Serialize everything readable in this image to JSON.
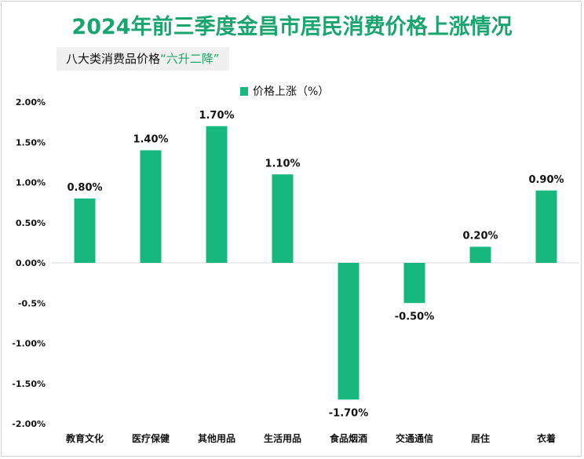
{
  "header": {
    "title": "2024年前三季度金昌市居民消费价格上涨情况",
    "subtitle_prefix": "八大类消费品价格",
    "subtitle_highlight": "“六升二降”"
  },
  "colors": {
    "bar": "#16b87d",
    "title": "#1aa56e",
    "highlight": "#16a766"
  },
  "chart_data": {
    "type": "bar",
    "title": "2024年前三季度金昌市居民消费价格上涨情况",
    "categories": [
      "教育文化",
      "医疗保健",
      "其他用品",
      "生活用品",
      "食品烟酒",
      "交通通信",
      "居住",
      "衣着"
    ],
    "series": [
      {
        "name": "价格上涨（%）",
        "values": [
          0.8,
          1.4,
          1.7,
          1.1,
          -1.7,
          -0.5,
          0.2,
          0.9
        ]
      }
    ],
    "data_labels": [
      "0.80%",
      "1.40%",
      "1.70%",
      "1.10%",
      "-1.70%",
      "-0.50%",
      "0.20%",
      "0.90%"
    ],
    "yticks": [
      2.0,
      1.5,
      1.0,
      0.5,
      0.0,
      -0.5,
      -1.0,
      -1.5,
      -2.0
    ],
    "ytick_labels": [
      "2.00%",
      "1.50%",
      "1.00%",
      "0.50%",
      "0.00%",
      "-0.5%",
      "-1.00%",
      "-1.50%",
      "-2.00%"
    ],
    "ylim": [
      -2.0,
      2.0
    ],
    "xlabel": "",
    "ylabel": "",
    "legend": "top-center",
    "grid": false
  }
}
